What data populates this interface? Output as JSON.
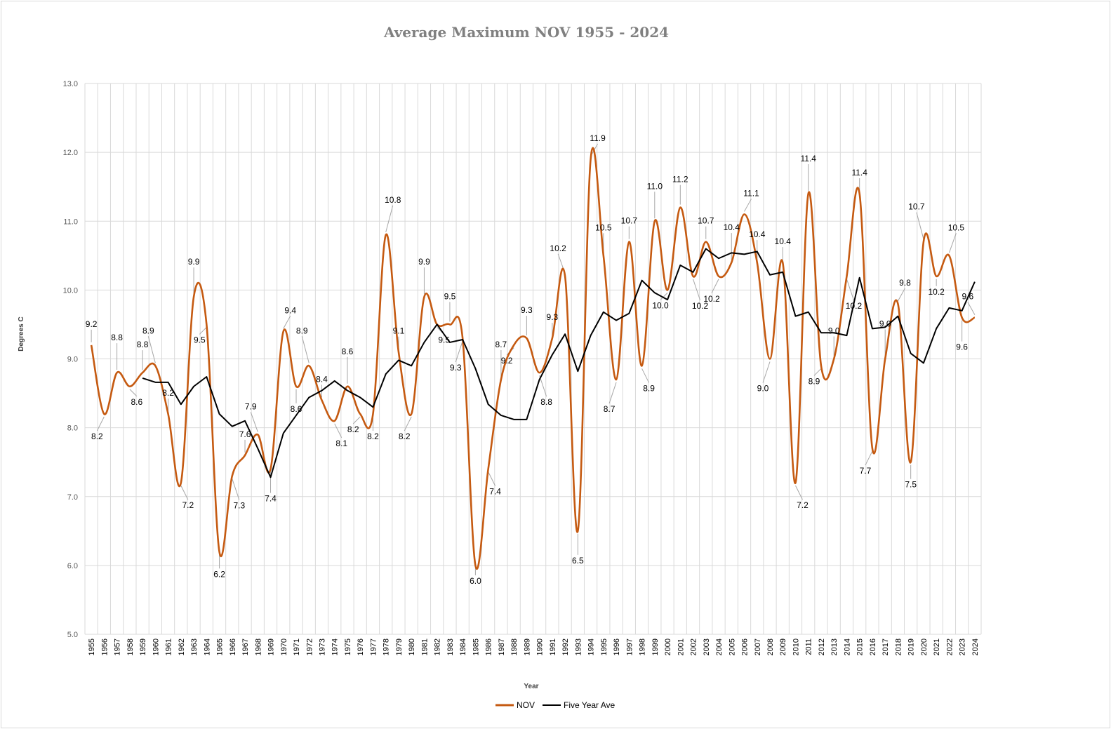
{
  "chart_data": {
    "type": "line",
    "title": "Average Maximum NOV 1955 - 2024",
    "xlabel": "Year",
    "ylabel": "Degrees C",
    "ylim": [
      5.0,
      13.0
    ],
    "yticks": [
      "5.0",
      "6.0",
      "7.0",
      "8.0",
      "9.0",
      "10.0",
      "11.0",
      "12.0",
      "13.0"
    ],
    "grid": true,
    "legend_position": "bottom",
    "x": [
      "1955",
      "1956",
      "1957",
      "1958",
      "1959",
      "1960",
      "1961",
      "1962",
      "1963",
      "1964",
      "1965",
      "1966",
      "1967",
      "1968",
      "1969",
      "1970",
      "1971",
      "1972",
      "1973",
      "1974",
      "1975",
      "1976",
      "1977",
      "1978",
      "1979",
      "1980",
      "1981",
      "1982",
      "1983",
      "1984",
      "1985",
      "1986",
      "1987",
      "1988",
      "1989",
      "1990",
      "1991",
      "1992",
      "1993",
      "1994",
      "1995",
      "1996",
      "1997",
      "1998",
      "1999",
      "2000",
      "2001",
      "2002",
      "2003",
      "2004",
      "2005",
      "2006",
      "2007",
      "2008",
      "2009",
      "2010",
      "2011",
      "2012",
      "2013",
      "2014",
      "2015",
      "2016",
      "2017",
      "2018",
      "2019",
      "2020",
      "2021",
      "2022",
      "2023",
      "2024"
    ],
    "series": [
      {
        "name": "NOV",
        "color": "#c55a11",
        "smooth": true,
        "values": [
          9.2,
          8.2,
          8.8,
          8.6,
          8.8,
          8.9,
          8.2,
          7.2,
          9.9,
          9.5,
          6.2,
          7.3,
          7.6,
          7.9,
          7.4,
          9.4,
          8.6,
          8.9,
          8.4,
          8.1,
          8.6,
          8.2,
          8.2,
          10.8,
          9.1,
          8.2,
          9.9,
          9.5,
          9.5,
          9.3,
          6.0,
          7.4,
          8.7,
          9.2,
          9.3,
          8.8,
          9.3,
          10.2,
          6.5,
          11.9,
          10.5,
          8.7,
          10.7,
          8.9,
          11.0,
          10.0,
          11.2,
          10.2,
          10.7,
          10.2,
          10.4,
          11.1,
          10.4,
          9.0,
          10.4,
          7.2,
          11.4,
          8.9,
          9.0,
          10.2,
          11.4,
          7.7,
          9.0,
          9.8,
          7.5,
          10.7,
          10.2,
          10.5,
          9.6,
          9.6
        ],
        "labels": [
          "9.2",
          "8.2",
          "8.8",
          "8.6",
          "8.8",
          "8.9",
          "8.2",
          "7.2",
          "9.9",
          "9.5",
          "6.2",
          "7.3",
          "7.6",
          "7.9",
          "7.4",
          "9.4",
          "8.6",
          "8.9",
          "8.4",
          "8.1",
          "8.6",
          "8.2",
          "8.2",
          "10.8",
          "9.1",
          "8.2",
          "9.9",
          "9.5",
          "9.5",
          "9.3",
          "6.0",
          "7.4",
          "8.7",
          "9.2",
          "9.3",
          "8.8",
          "9.3",
          "10.2",
          "6.5",
          "11.9",
          "10.5",
          "8.7",
          "10.7",
          "8.9",
          "11.0",
          "10.0",
          "11.2",
          "10.2",
          "10.7",
          "10.2",
          "10.4",
          "11.1",
          "10.4",
          "9.0",
          "10.4",
          "7.2",
          "11.4",
          "8.9",
          "9.0",
          "10.2",
          "11.4",
          "7.7",
          "9.0",
          "9.8",
          "7.5",
          "10.7",
          "10.2",
          "10.5",
          "9.6",
          "9.6"
        ]
      },
      {
        "name": "Five Year Ave",
        "color": "#000000",
        "smooth": false,
        "values": [
          null,
          null,
          null,
          null,
          8.72,
          8.66,
          8.66,
          8.34,
          8.6,
          8.74,
          8.2,
          8.02,
          8.1,
          7.7,
          7.28,
          7.92,
          8.18,
          8.44,
          8.54,
          8.68,
          8.54,
          8.44,
          8.3,
          8.78,
          8.98,
          8.9,
          9.24,
          9.5,
          9.24,
          9.28,
          8.86,
          8.34,
          8.18,
          8.12,
          8.12,
          8.7,
          9.06,
          9.36,
          8.82,
          9.34,
          9.68,
          9.56,
          9.66,
          10.14,
          9.96,
          9.86,
          10.36,
          10.26,
          10.6,
          10.46,
          10.54,
          10.52,
          10.56,
          10.22,
          10.26,
          9.62,
          9.68,
          9.38,
          9.38,
          9.34,
          10.18,
          9.44,
          9.46,
          9.62,
          9.08,
          8.94,
          9.44,
          9.74,
          9.7,
          10.12
        ]
      }
    ]
  }
}
